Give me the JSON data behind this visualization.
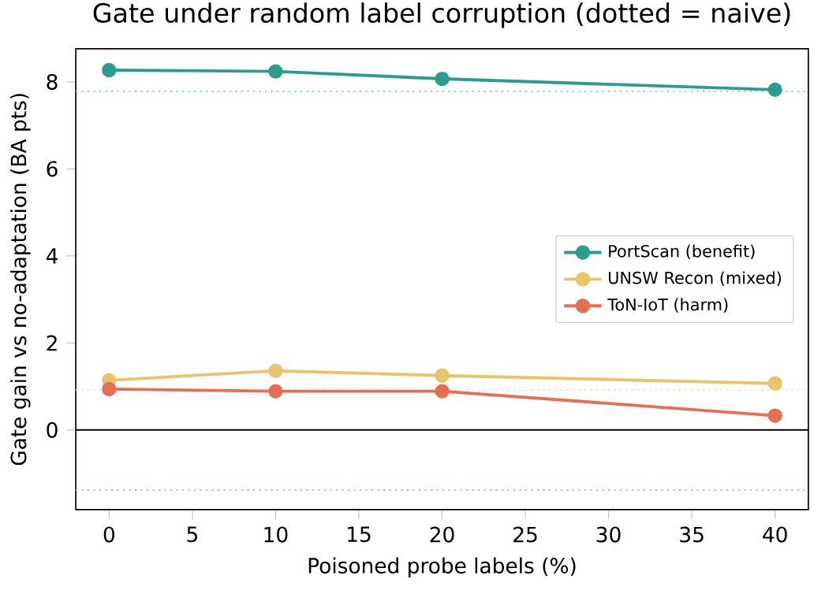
{
  "chart_data": {
    "type": "line",
    "title": "Gate under random label corruption (dotted = naive)",
    "xlabel": "Poisoned probe labels (%)",
    "ylabel": "Gate gain vs no-adaptation (BA pts)",
    "x": [
      0,
      10,
      20,
      40
    ],
    "series": [
      {
        "name": "PortScan (benefit)",
        "color": "#2a9d8f",
        "values": [
          8.27,
          8.24,
          8.07,
          7.82
        ]
      },
      {
        "name": "UNSW Recon (mixed)",
        "color": "#e9c46a",
        "values": [
          1.14,
          1.36,
          1.25,
          1.07
        ]
      },
      {
        "name": "ToN-IoT (harm)",
        "color": "#e76f51",
        "values": [
          0.94,
          0.89,
          0.89,
          0.33
        ]
      }
    ],
    "ref_lines": [
      {
        "axis": "y",
        "value": 0,
        "color": "#000000",
        "line_style": "solid"
      },
      {
        "axis": "y",
        "value": 7.78,
        "color": "#7fd0c6",
        "line_style": "dotted"
      },
      {
        "axis": "y",
        "value": 0.92,
        "color": "#f5dfa3",
        "line_style": "dotted"
      },
      {
        "axis": "y",
        "value": -1.38,
        "color": "#f4a190",
        "line_style": "dotted"
      }
    ],
    "xlim": [
      -2,
      42
    ],
    "ylim": [
      -1.83,
      8.76
    ],
    "xticks": [
      0,
      5,
      10,
      15,
      20,
      25,
      30,
      35,
      40
    ],
    "yticks": [
      0,
      2,
      4,
      6,
      8
    ],
    "grid": false,
    "legend": "right",
    "marker": "circle",
    "line_style": "solid"
  }
}
